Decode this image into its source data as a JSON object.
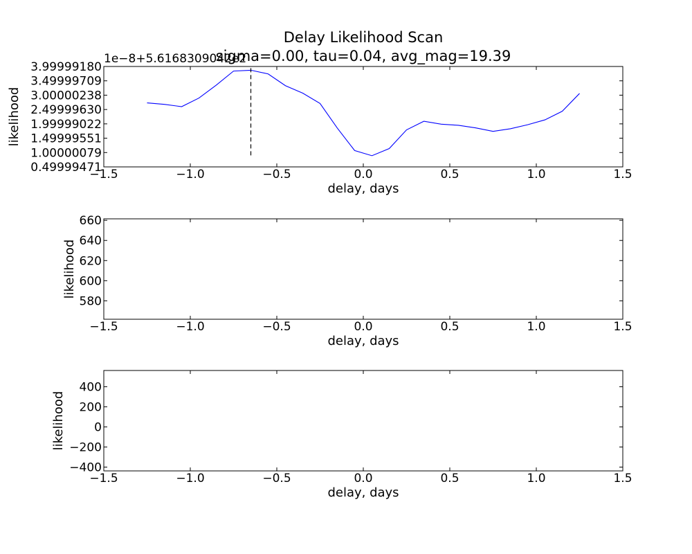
{
  "title": "Delay Likelihood Scan",
  "subtitle": "sigma=0.00, tau=0.04, avg_mag=19.39",
  "chart_data": [
    {
      "type": "line",
      "xlabel": "delay, days",
      "ylabel": "likelihood",
      "xlim": [
        -1.5,
        1.5
      ],
      "x_ticks": [
        "−1.5",
        "−1.0",
        "−0.5",
        "0.0",
        "0.5",
        "1.0",
        "1.5"
      ],
      "x_tick_values": [
        -1.5,
        -1.0,
        -0.5,
        0.0,
        0.5,
        1.0,
        1.5
      ],
      "y_offset_label": "1e−8+5.6168309042e2",
      "ylim": [
        0.4999947,
        3.9999918
      ],
      "y_ticks": [
        "3.99999180",
        "3.49999709",
        "3.00000238",
        "2.49999630",
        "1.99999022",
        "1.49999551",
        "1.00000079",
        "0.49999471"
      ],
      "y_tick_values": [
        3.9999918,
        3.49999709,
        3.00000238,
        2.4999963,
        1.99999022,
        1.49999551,
        1.00000079,
        0.49999471
      ],
      "marker_x": -0.65,
      "marker_y_range": [
        0.9,
        3.95
      ],
      "x": [
        -1.25,
        -1.15,
        -1.05,
        -0.95,
        -0.85,
        -0.75,
        -0.65,
        -0.55,
        -0.45,
        -0.35,
        -0.25,
        -0.15,
        -0.05,
        0.05,
        0.15,
        0.25,
        0.35,
        0.45,
        0.55,
        0.65,
        0.75,
        0.85,
        0.95,
        1.05,
        1.15,
        1.25
      ],
      "y": [
        2.73,
        2.68,
        2.6,
        2.9,
        3.35,
        3.84,
        3.87,
        3.74,
        3.33,
        3.07,
        2.71,
        1.85,
        1.07,
        0.89,
        1.14,
        1.79,
        2.09,
        1.99,
        1.95,
        1.86,
        1.74,
        1.83,
        1.97,
        2.14,
        2.44,
        3.06
      ]
    },
    {
      "type": "line",
      "xlabel": "delay, days",
      "ylabel": "likelihood",
      "xlim": [
        -1.5,
        1.5
      ],
      "x_ticks": [
        "−1.5",
        "−1.0",
        "−0.5",
        "0.0",
        "0.5",
        "1.0",
        "1.5"
      ],
      "x_tick_values": [
        -1.5,
        -1.0,
        -0.5,
        0.0,
        0.5,
        1.0,
        1.5
      ],
      "ylim": [
        561.683,
        661.5
      ],
      "y_ticks": [
        "660",
        "640",
        "620",
        "600",
        "580"
      ],
      "y_tick_values": [
        660,
        640,
        620,
        600,
        580
      ],
      "x": [
        -1.25,
        1.25
      ],
      "y": [
        561.683,
        561.683
      ]
    },
    {
      "type": "line",
      "xlabel": "delay, days",
      "ylabel": "likelihood",
      "xlim": [
        -1.5,
        1.5
      ],
      "x_ticks": [
        "−1.5",
        "−1.0",
        "−0.5",
        "0.0",
        "0.5",
        "1.0",
        "1.5"
      ],
      "x_tick_values": [
        -1.5,
        -1.0,
        -0.5,
        0.0,
        0.5,
        1.0,
        1.5
      ],
      "ylim": [
        -438,
        561.683
      ],
      "y_ticks": [
        "400",
        "200",
        "0",
        "−200",
        "−400"
      ],
      "y_tick_values": [
        400,
        200,
        0,
        -200,
        -400
      ],
      "x": [
        -1.25,
        1.25
      ],
      "y": [
        561.683,
        561.683
      ]
    }
  ]
}
